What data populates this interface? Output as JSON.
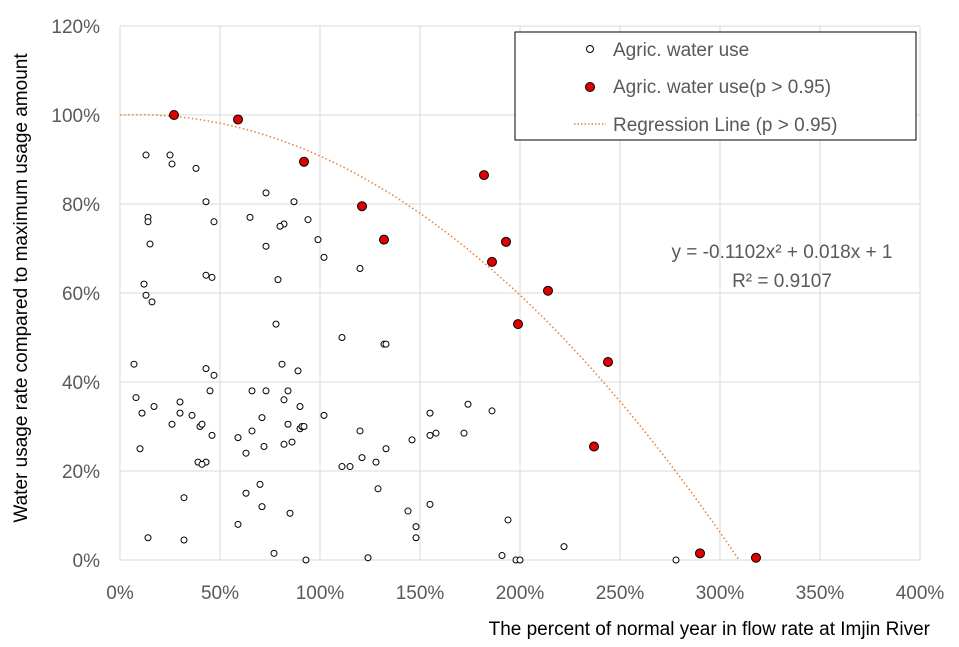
{
  "chart_data": {
    "type": "scatter",
    "xlabel": "The percent of normal year in flow rate at Imjin River",
    "ylabel": "Water usage rate compared to maximum usage amount",
    "xlim": [
      0,
      400
    ],
    "ylim": [
      0,
      120
    ],
    "x_ticks": [
      0,
      50,
      100,
      150,
      200,
      250,
      300,
      350,
      400
    ],
    "y_ticks": [
      0,
      20,
      40,
      60,
      80,
      100,
      120
    ],
    "x_tick_labels": [
      "0%",
      "50%",
      "100%",
      "150%",
      "200%",
      "250%",
      "300%",
      "350%",
      "400%"
    ],
    "y_tick_labels": [
      "0%",
      "20%",
      "40%",
      "60%",
      "80%",
      "100%",
      "120%"
    ],
    "grid": true,
    "legend_position": "top-right",
    "colors": {
      "open_marker": "#000000",
      "red_marker": "#e00000",
      "regression": "#ed7d31",
      "grid": "#d9d9d9"
    },
    "legend": [
      {
        "label": "Agric. water use",
        "marker": "open-circle"
      },
      {
        "label": "Agric. water use(p > 0.95)",
        "marker": "red-circle"
      },
      {
        "label": "Regression Line (p > 0.95)",
        "marker": "dotted-line"
      }
    ],
    "equation_lines": [
      "y = -0.1102x² + 0.018x + 1",
      "R² = 0.9107"
    ],
    "regression": {
      "a": -0.1102,
      "b": 0.018,
      "c": 1
    },
    "series": [
      {
        "name": "Agric. water use",
        "marker": "open",
        "points": [
          [
            13,
            91
          ],
          [
            25,
            91
          ],
          [
            26,
            89
          ],
          [
            38,
            88
          ],
          [
            14,
            77
          ],
          [
            14,
            76
          ],
          [
            15,
            71
          ],
          [
            12,
            62
          ],
          [
            13,
            59.5
          ],
          [
            16,
            58
          ],
          [
            43,
            80.5
          ],
          [
            47,
            76
          ],
          [
            43,
            64
          ],
          [
            46,
            63.5
          ],
          [
            65,
            77
          ],
          [
            73,
            82.5
          ],
          [
            87,
            80.5
          ],
          [
            82,
            75.5
          ],
          [
            80,
            75
          ],
          [
            73,
            70.5
          ],
          [
            99,
            72
          ],
          [
            102,
            68
          ],
          [
            94,
            76.5
          ],
          [
            79,
            63
          ],
          [
            78,
            53
          ],
          [
            120,
            65.5
          ],
          [
            111,
            50
          ],
          [
            132,
            48.5
          ],
          [
            133,
            48.5
          ],
          [
            7,
            44
          ],
          [
            8,
            36.5
          ],
          [
            11,
            33
          ],
          [
            17,
            34.5
          ],
          [
            10,
            25
          ],
          [
            26,
            30.5
          ],
          [
            30,
            35.5
          ],
          [
            30,
            33
          ],
          [
            36,
            32.5
          ],
          [
            39,
            22
          ],
          [
            40,
            30
          ],
          [
            41,
            30.5
          ],
          [
            43,
            43
          ],
          [
            47,
            41.5
          ],
          [
            45,
            38
          ],
          [
            46,
            28
          ],
          [
            43,
            22
          ],
          [
            41,
            21.5
          ],
          [
            59,
            27.5
          ],
          [
            63,
            24
          ],
          [
            66,
            38
          ],
          [
            66,
            29
          ],
          [
            71,
            32
          ],
          [
            73,
            38
          ],
          [
            72,
            25.5
          ],
          [
            81,
            44
          ],
          [
            82,
            36
          ],
          [
            84,
            38
          ],
          [
            84,
            30.5
          ],
          [
            89,
            42.5
          ],
          [
            90,
            34.5
          ],
          [
            90,
            29.5
          ],
          [
            91,
            30
          ],
          [
            92,
            30
          ],
          [
            86,
            26.5
          ],
          [
            82,
            26
          ],
          [
            102,
            32.5
          ],
          [
            120,
            29
          ],
          [
            111,
            21
          ],
          [
            115,
            21
          ],
          [
            121,
            23
          ],
          [
            128,
            22
          ],
          [
            133,
            25
          ],
          [
            146,
            27
          ],
          [
            155,
            33
          ],
          [
            155,
            28
          ],
          [
            158,
            28.5
          ],
          [
            172,
            28.5
          ],
          [
            174,
            35
          ],
          [
            186,
            33.5
          ],
          [
            14,
            5
          ],
          [
            32,
            4.5
          ],
          [
            32,
            14
          ],
          [
            59,
            8
          ],
          [
            63,
            15
          ],
          [
            70,
            17
          ],
          [
            71,
            12
          ],
          [
            77,
            1.5
          ],
          [
            85,
            10.5
          ],
          [
            93,
            0
          ],
          [
            124,
            0.5
          ],
          [
            129,
            16
          ],
          [
            144,
            11
          ],
          [
            148,
            7.5
          ],
          [
            148,
            5
          ],
          [
            155,
            12.5
          ],
          [
            191,
            1
          ],
          [
            194,
            9
          ],
          [
            198,
            0
          ],
          [
            200,
            0
          ],
          [
            222,
            3
          ],
          [
            278,
            0
          ]
        ]
      },
      {
        "name": "Agric. water use(p > 0.95)",
        "marker": "filled",
        "points": [
          [
            27,
            100
          ],
          [
            59,
            99
          ],
          [
            92,
            89.5
          ],
          [
            121,
            79.5
          ],
          [
            132,
            72
          ],
          [
            182,
            86.5
          ],
          [
            193,
            71.5
          ],
          [
            186,
            67
          ],
          [
            214,
            60.5
          ],
          [
            199,
            53
          ],
          [
            244,
            44.5
          ],
          [
            237,
            25.5
          ],
          [
            290,
            1.5
          ],
          [
            318,
            0.5
          ]
        ]
      }
    ]
  }
}
